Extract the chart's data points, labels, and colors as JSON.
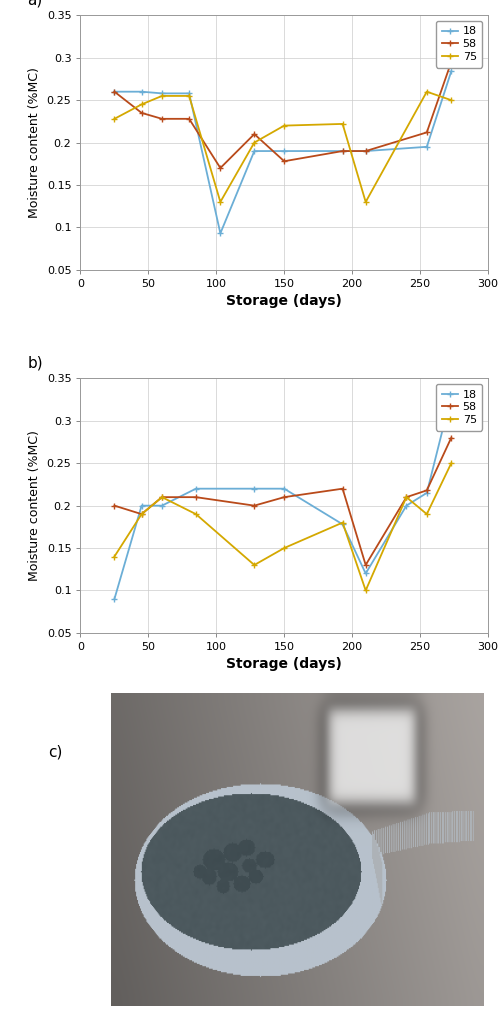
{
  "panel_a": {
    "series": [
      {
        "label": "18",
        "color": "#6baed6",
        "x": [
          25,
          45,
          60,
          80,
          103,
          128,
          150,
          193,
          210,
          255,
          273
        ],
        "y": [
          0.26,
          0.26,
          0.258,
          0.258,
          0.093,
          0.19,
          0.19,
          0.19,
          0.19,
          0.195,
          0.284
        ]
      },
      {
        "label": "58",
        "color": "#b94a1a",
        "x": [
          25,
          45,
          60,
          80,
          103,
          128,
          150,
          193,
          210,
          255,
          273
        ],
        "y": [
          0.26,
          0.235,
          0.228,
          0.228,
          0.17,
          0.21,
          0.178,
          0.19,
          0.19,
          0.212,
          0.295
        ]
      },
      {
        "label": "75",
        "color": "#d4a800",
        "x": [
          25,
          45,
          60,
          80,
          103,
          128,
          150,
          193,
          210,
          255,
          273
        ],
        "y": [
          0.228,
          0.245,
          0.255,
          0.255,
          0.13,
          0.2,
          0.22,
          0.222,
          0.13,
          0.26,
          0.25
        ]
      }
    ],
    "xlabel": "Storage (days)",
    "ylabel": "Moisture content (%MC)",
    "xlim": [
      0,
      300
    ],
    "ylim": [
      0.05,
      0.35
    ],
    "xticks": [
      0,
      50,
      100,
      150,
      200,
      250,
      300
    ],
    "yticks": [
      0.05,
      0.1,
      0.15,
      0.2,
      0.25,
      0.3,
      0.35
    ],
    "panel_label": "a)"
  },
  "panel_b": {
    "series": [
      {
        "label": "18",
        "color": "#6baed6",
        "x": [
          25,
          45,
          60,
          85,
          128,
          150,
          193,
          210,
          240,
          255,
          273
        ],
        "y": [
          0.09,
          0.2,
          0.2,
          0.22,
          0.22,
          0.22,
          0.178,
          0.12,
          0.2,
          0.215,
          0.33
        ]
      },
      {
        "label": "58",
        "color": "#b94a1a",
        "x": [
          25,
          45,
          60,
          85,
          128,
          150,
          193,
          210,
          240,
          255,
          273
        ],
        "y": [
          0.2,
          0.19,
          0.21,
          0.21,
          0.2,
          0.21,
          0.22,
          0.13,
          0.21,
          0.218,
          0.28
        ]
      },
      {
        "label": "75",
        "color": "#d4a800",
        "x": [
          25,
          45,
          60,
          85,
          128,
          150,
          193,
          210,
          240,
          255,
          273
        ],
        "y": [
          0.14,
          0.19,
          0.21,
          0.19,
          0.13,
          0.15,
          0.18,
          0.1,
          0.21,
          0.19,
          0.25
        ]
      }
    ],
    "xlabel": "Storage (days)",
    "ylabel": "Moisture content (%MC)",
    "xlim": [
      0,
      300
    ],
    "ylim": [
      0.05,
      0.35
    ],
    "xticks": [
      0,
      50,
      100,
      150,
      200,
      250,
      300
    ],
    "yticks": [
      0.05,
      0.1,
      0.15,
      0.2,
      0.25,
      0.3,
      0.35
    ],
    "panel_label": "b)"
  },
  "panel_c": {
    "panel_label": "c)"
  },
  "line_width": 1.3,
  "marker": "+",
  "marker_size": 5,
  "legend_fontsize": 8,
  "axis_fontsize": 9,
  "tick_fontsize": 8,
  "label_fontsize": 10,
  "grid_color": "#cccccc",
  "grid_alpha": 1.0
}
